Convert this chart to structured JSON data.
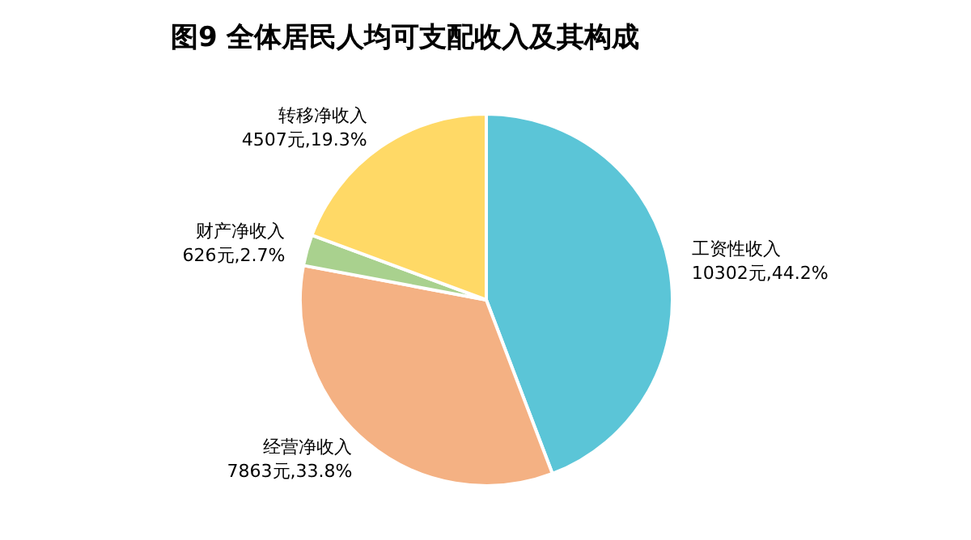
{
  "chart_data": {
    "type": "pie",
    "title": "图9  全体居民人均可支配收入及其构成",
    "categories": [
      "工资性收入",
      "经营净收入",
      "财产净收入",
      "转移净收入"
    ],
    "values": [
      10302,
      7863,
      626,
      4507
    ],
    "value_labels": [
      "10302元,44.2%",
      "7863元,33.8%",
      "626元,2.7%",
      "4507元,19.3%"
    ],
    "colors": [
      "#5bc5d7",
      "#f4b183",
      "#a9d18e",
      "#ffd966"
    ]
  }
}
